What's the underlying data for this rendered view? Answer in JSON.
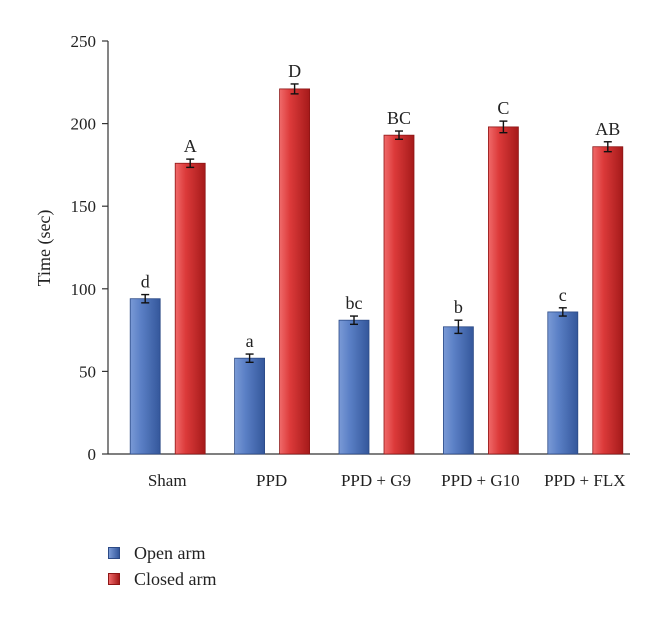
{
  "chart_data": {
    "type": "bar",
    "title": "",
    "xlabel": "",
    "ylabel": "Time (sec)",
    "ylim": [
      0,
      250
    ],
    "yticks": [
      0,
      50,
      100,
      150,
      200,
      250
    ],
    "categories": [
      "Sham",
      "PPD",
      "PPD + G9",
      "PPD + G10",
      "PPD + FLX"
    ],
    "series": [
      {
        "name": "Open arm",
        "color": "#4a73b8",
        "values": [
          94,
          58,
          81,
          77,
          86
        ],
        "errors": [
          2.5,
          2.5,
          2.5,
          4,
          2.5
        ],
        "labels": [
          "d",
          "a",
          "bc",
          "b",
          "c"
        ]
      },
      {
        "name": "Closed arm",
        "color": "#d83232",
        "values": [
          176,
          221,
          193,
          198,
          186
        ],
        "errors": [
          2.5,
          3,
          2.5,
          3.5,
          3
        ],
        "labels": [
          "A",
          "D",
          "BC",
          "C",
          "AB"
        ]
      }
    ],
    "legend_position": "bottom-left",
    "grid": false
  }
}
